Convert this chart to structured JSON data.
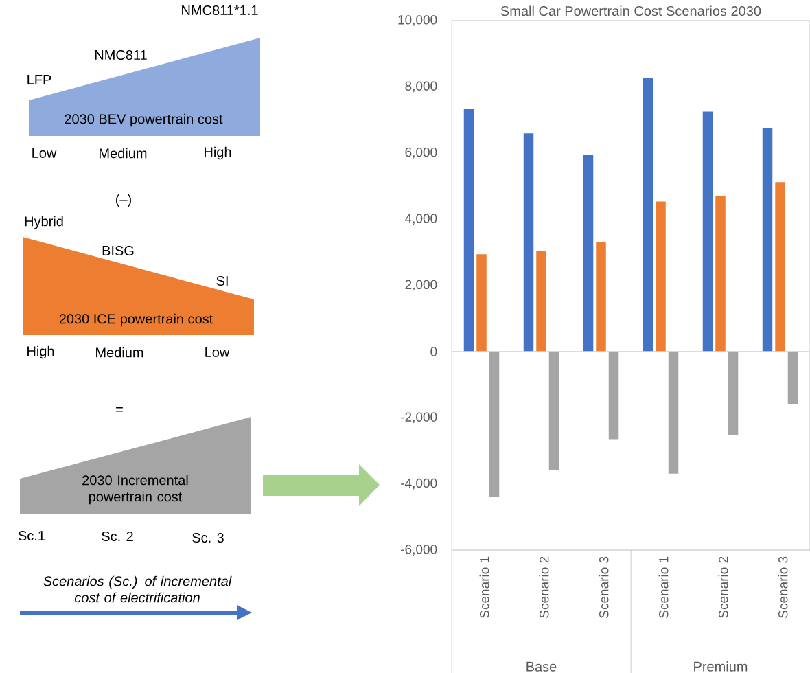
{
  "chart_data": {
    "type": "bar",
    "title": "Small Car Powertrain Cost Scenarios 2030",
    "categories": [
      "Scenario 1",
      "Scenario 2",
      "Scenario 3",
      "Scenario 1",
      "Scenario 2",
      "Scenario 3"
    ],
    "series": [
      {
        "color": "#4472c4",
        "values": [
          7330,
          6590,
          5930,
          8270,
          7250,
          6740
        ]
      },
      {
        "color": "#ed7d31",
        "values": [
          2940,
          3030,
          3300,
          4530,
          4700,
          5120
        ]
      },
      {
        "color": "#a5a5a5",
        "values": [
          -4390,
          -3580,
          -2650,
          -3690,
          -2530,
          -1590
        ]
      }
    ],
    "ylim": [
      -6000,
      10000
    ],
    "yticks": [
      {
        "value": -6000,
        "label": "-6,000"
      },
      {
        "value": -4000,
        "label": "-4,000"
      },
      {
        "value": -2000,
        "label": "-2,000"
      },
      0,
      {
        "value": 2000,
        "label": "2,000"
      },
      {
        "value": 4000,
        "label": "4,000"
      },
      {
        "value": 6000,
        "label": "6,000"
      },
      {
        "value": 8000,
        "label": "8,000"
      },
      {
        "value": 10000,
        "label": "10,000"
      }
    ],
    "annotations": [
      "NMC811*1.1",
      "NMC811",
      "LFP",
      "2030 BEV powertrain cost",
      "Low",
      "Medium",
      "High",
      "(–)",
      "Hybrid",
      "BISG",
      "SI",
      "2030 ICE powertrain cost",
      "High",
      "Medium",
      "Low",
      "=",
      "2030 Incremental powertrain cost",
      "Sc.1",
      "Sc. 2",
      "Sc. 3",
      "*Scenarios (Sc.) of incremental cost of electrification*",
      "Base",
      "Premium"
    ]
  }
}
